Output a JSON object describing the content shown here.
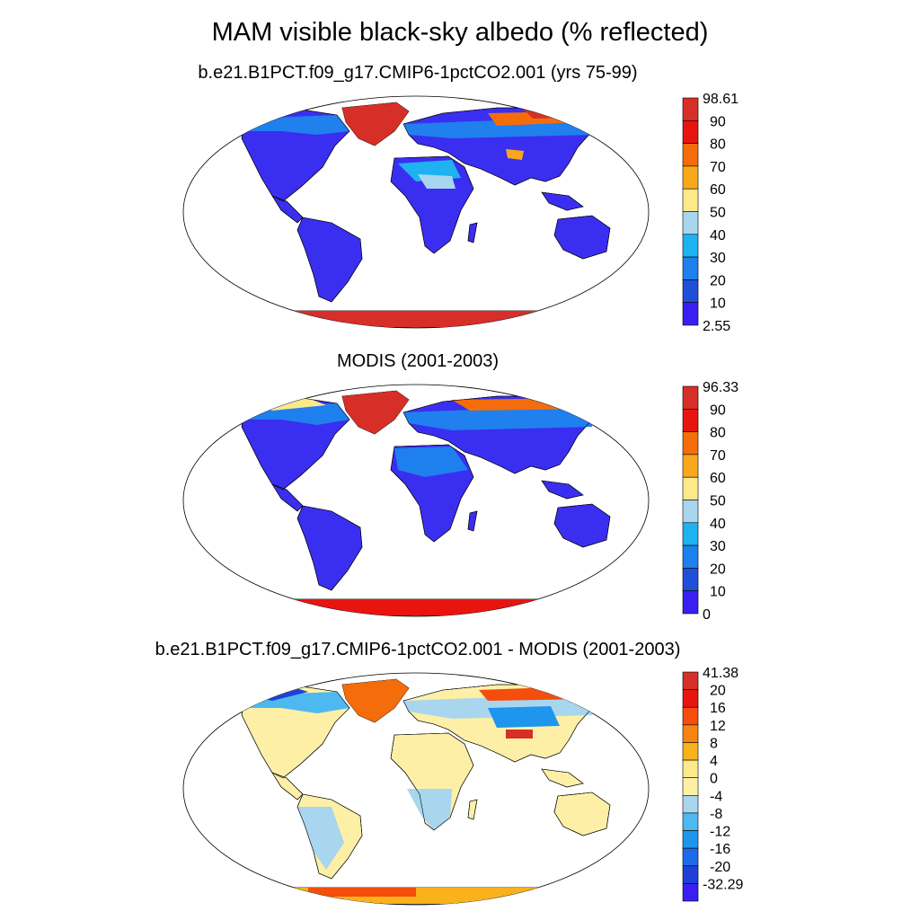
{
  "title": "MAM visible black-sky albedo (% reflected)",
  "panels": [
    {
      "title": "b.e21.B1PCT.f09_g17.CMIP6-1pctCO2.001 (yrs 75-99)",
      "colorbar": {
        "labels": [
          "98.61",
          "90",
          "80",
          "70",
          "60",
          "50",
          "40",
          "30",
          "20",
          "10",
          "2.55"
        ],
        "colors": [
          "#d62f27",
          "#e8150f",
          "#f46d0a",
          "#f9a81c",
          "#fde98a",
          "#a9d6ef",
          "#1fb2f0",
          "#1e80ee",
          "#1f4fd8",
          "#3a1ff2"
        ]
      }
    },
    {
      "title": "MODIS (2001-2003)",
      "colorbar": {
        "labels": [
          "96.33",
          "90",
          "80",
          "70",
          "60",
          "50",
          "40",
          "30",
          "20",
          "10",
          "0"
        ],
        "colors": [
          "#d62f27",
          "#e8150f",
          "#f46d0a",
          "#f9a81c",
          "#fde98a",
          "#a9d6ef",
          "#1fb2f0",
          "#1e80ee",
          "#1f4fd8",
          "#3a1ff2"
        ]
      }
    },
    {
      "title": "b.e21.B1PCT.f09_g17.CMIP6-1pctCO2.001 - MODIS (2001-2003)",
      "colorbar": {
        "labels": [
          "41.38",
          "20",
          "16",
          "12",
          "8",
          "4",
          "0",
          "-4",
          "-8",
          "-12",
          "-16",
          "-20",
          "-32.29"
        ],
        "colors": [
          "#d62f27",
          "#e8150f",
          "#f44d0c",
          "#f7840f",
          "#f9b21c",
          "#fde98a",
          "#fdf0a6",
          "#a9d6ef",
          "#4db9f0",
          "#1f96ee",
          "#1e6bea",
          "#1f3fd8",
          "#3a1ff2"
        ]
      }
    }
  ]
}
